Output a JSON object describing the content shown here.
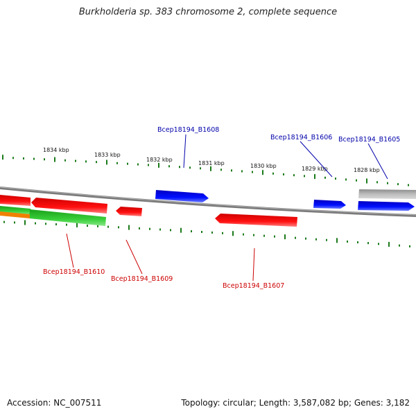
{
  "title": "Burkholderia sp. 383 chromosome 2, complete sequence",
  "accession_text": "Accession: NC_007511",
  "summary_text": "Topology: circular; Length: 3,587,082 bp; Genes: 3,182",
  "colors": {
    "backbone": "#808080",
    "tick": "#1a7a1a",
    "forward_gene": "#0000e0",
    "reverse_gene": "#e00000",
    "rna_green": "#33c033",
    "rna_orange": "#f08000",
    "gray_feature": "#a8a8a8",
    "forward_label": "#0000aa",
    "reverse_label": "#cc0000"
  },
  "ticks": [
    {
      "label": "1834 kbp"
    },
    {
      "label": "1833 kbp"
    },
    {
      "label": "1832 kbp"
    },
    {
      "label": "1831 kbp"
    },
    {
      "label": "1830 kbp"
    },
    {
      "label": "1829 kbp"
    },
    {
      "label": "1828 kbp"
    }
  ],
  "gene_labels": {
    "b1608": "Bcep18194_B1608",
    "b1606": "Bcep18194_B1606",
    "b1605": "Bcep18194_B1605",
    "b1610": "Bcep18194_B1610",
    "b1609": "Bcep18194_B1609",
    "b1607": "Bcep18194_B1607"
  }
}
